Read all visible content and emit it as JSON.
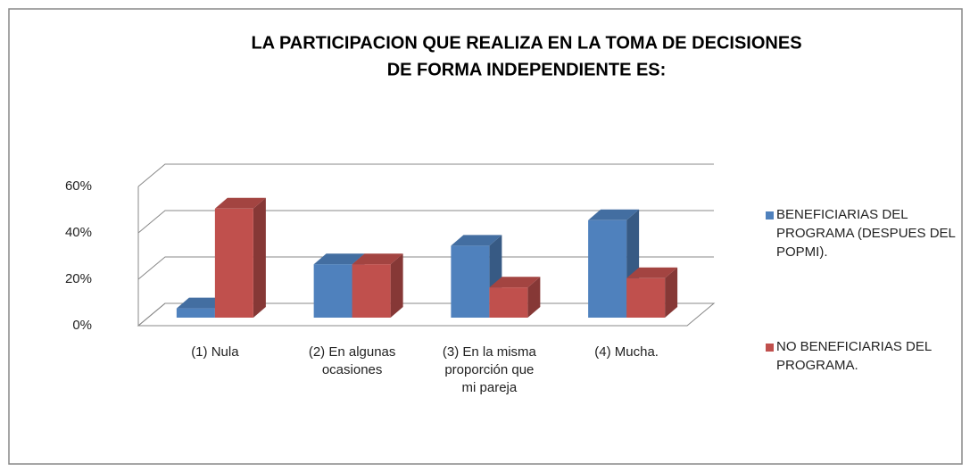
{
  "chart_data": {
    "type": "bar3d",
    "title": [
      "LA PARTICIPACION QUE REALIZA  EN LA TOMA DE DECISIONES",
      "DE FORMA INDEPENDIENTE ES:"
    ],
    "categories": [
      "(1) Nula",
      "(2) En algunas ocasiones",
      "(3) En la misma proporción que mi pareja",
      "(4) Mucha."
    ],
    "series": [
      {
        "name": "BENEFICIARIAS DEL PROGRAMA (DESPUES DEL POPMI).",
        "color": "#4f81bd",
        "values": [
          4,
          23,
          31,
          42
        ]
      },
      {
        "name": "NO BENEFICIARIAS DEL PROGRAMA.",
        "color": "#c0504d",
        "values": [
          47,
          23,
          13,
          17
        ]
      }
    ],
    "ylim": [
      0,
      60
    ],
    "yticks": [
      {
        "value": 0,
        "label": "0%"
      },
      {
        "value": 20,
        "label": "20%"
      },
      {
        "value": 40,
        "label": "40%"
      },
      {
        "value": 60,
        "label": "60%"
      }
    ],
    "grid": true,
    "legend": "right"
  }
}
